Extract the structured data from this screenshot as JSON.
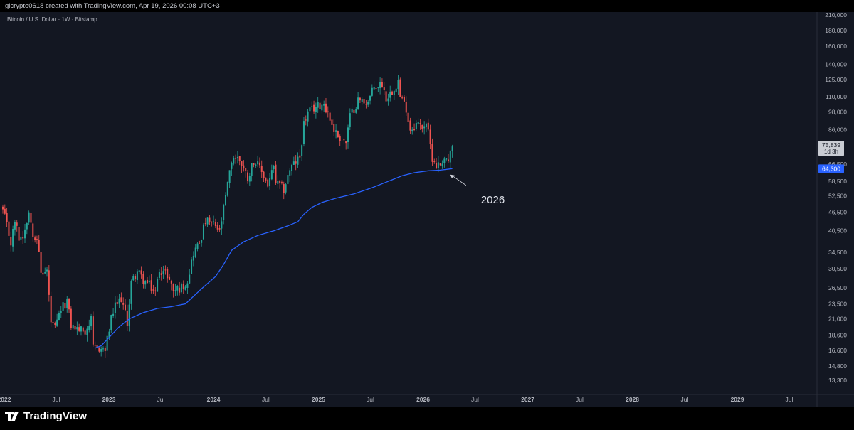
{
  "header": {
    "attribution": "glcrypto0618 created with TradingView.com, Apr 19, 2026 00:08 UTC+3"
  },
  "footer": {
    "logo_text": "TradingView"
  },
  "colors": {
    "up": "#26a69a",
    "down": "#ef5350",
    "ma": "#2962ff",
    "background": "#131722",
    "text": "#b2b5be"
  },
  "chart_data": {
    "type": "candlestick",
    "title": "Bitcoin / U.S. Dollar · 1W · Bitstamp",
    "scale": "log",
    "ylim": [
      12800,
      215000
    ],
    "x_range": [
      "2021-12-27",
      "2029-10-01"
    ],
    "y_ticks": [
      "210,000",
      "180,000",
      "160,000",
      "140,000",
      "125,000",
      "110,000",
      "98,000",
      "86,000",
      "66,500",
      "58,500",
      "52,500",
      "46,500",
      "40,500",
      "34,500",
      "30,500",
      "26,500",
      "23,500",
      "21,000",
      "18,600",
      "16,600",
      "14,800",
      "13,300"
    ],
    "x_ticks": [
      {
        "label": "2022",
        "date": "2022-01-01",
        "bold": true
      },
      {
        "label": "Jul",
        "date": "2022-07-01",
        "bold": false
      },
      {
        "label": "2023",
        "date": "2023-01-01",
        "bold": true
      },
      {
        "label": "Jul",
        "date": "2023-07-01",
        "bold": false
      },
      {
        "label": "2024",
        "date": "2024-01-01",
        "bold": true
      },
      {
        "label": "Jul",
        "date": "2024-07-01",
        "bold": false
      },
      {
        "label": "2025",
        "date": "2025-01-01",
        "bold": true
      },
      {
        "label": "Jul",
        "date": "2025-07-01",
        "bold": false
      },
      {
        "label": "2026",
        "date": "2026-01-01",
        "bold": true
      },
      {
        "label": "Jul",
        "date": "2026-07-01",
        "bold": false
      },
      {
        "label": "2027",
        "date": "2027-01-01",
        "bold": true
      },
      {
        "label": "Jul",
        "date": "2027-07-01",
        "bold": false
      },
      {
        "label": "2028",
        "date": "2028-01-01",
        "bold": true
      },
      {
        "label": "Jul",
        "date": "2028-07-01",
        "bold": false
      },
      {
        "label": "2029",
        "date": "2029-01-01",
        "bold": true
      },
      {
        "label": "Jul",
        "date": "2029-07-01",
        "bold": false
      }
    ],
    "price_label": {
      "value": 75839,
      "text": "75,839",
      "countdown": "1d 3h"
    },
    "ma_label": {
      "value": 64300,
      "text": "64,300"
    },
    "annotation": {
      "text": "2026",
      "date": "2026-04-06",
      "price": 61500
    },
    "close_path": [
      [
        "2021-12-27",
        47000
      ],
      [
        "2022-01-10",
        42000
      ],
      [
        "2022-01-24",
        37000
      ],
      [
        "2022-02-07",
        43500
      ],
      [
        "2022-02-21",
        38500
      ],
      [
        "2022-03-07",
        39000
      ],
      [
        "2022-03-28",
        46800
      ],
      [
        "2022-04-11",
        40000
      ],
      [
        "2022-04-25",
        38500
      ],
      [
        "2022-05-09",
        29500
      ],
      [
        "2022-05-30",
        30000
      ],
      [
        "2022-06-13",
        20500
      ],
      [
        "2022-06-27",
        19500
      ],
      [
        "2022-07-18",
        22500
      ],
      [
        "2022-08-08",
        24000
      ],
      [
        "2022-08-22",
        20000
      ],
      [
        "2022-09-12",
        19500
      ],
      [
        "2022-10-10",
        19200
      ],
      [
        "2022-10-31",
        20800
      ],
      [
        "2022-11-07",
        16800
      ],
      [
        "2022-11-28",
        16900
      ],
      [
        "2022-12-19",
        16600
      ],
      [
        "2023-01-09",
        21000
      ],
      [
        "2023-01-23",
        23000
      ],
      [
        "2023-02-13",
        24500
      ],
      [
        "2023-03-06",
        20500
      ],
      [
        "2023-03-20",
        27500
      ],
      [
        "2023-04-10",
        30000
      ],
      [
        "2023-05-01",
        28000
      ],
      [
        "2023-05-22",
        27000
      ],
      [
        "2023-06-12",
        25500
      ],
      [
        "2023-06-26",
        30500
      ],
      [
        "2023-07-24",
        29200
      ],
      [
        "2023-08-14",
        26000
      ],
      [
        "2023-09-11",
        26500
      ],
      [
        "2023-10-02",
        28000
      ],
      [
        "2023-10-23",
        34500
      ],
      [
        "2023-11-13",
        37000
      ],
      [
        "2023-12-04",
        43500
      ],
      [
        "2024-01-08",
        42000
      ],
      [
        "2024-01-22",
        40000
      ],
      [
        "2024-02-12",
        52000
      ],
      [
        "2024-03-04",
        68000
      ],
      [
        "2024-03-11",
        70000
      ],
      [
        "2024-04-01",
        69000
      ],
      [
        "2024-04-29",
        60000
      ],
      [
        "2024-05-20",
        68500
      ],
      [
        "2024-06-17",
        63000
      ],
      [
        "2024-07-08",
        57000
      ],
      [
        "2024-07-29",
        65000
      ],
      [
        "2024-08-05",
        58000
      ],
      [
        "2024-09-02",
        55000
      ],
      [
        "2024-09-23",
        64000
      ],
      [
        "2024-10-28",
        70000
      ],
      [
        "2024-11-11",
        90000
      ],
      [
        "2024-11-25",
        97000
      ],
      [
        "2024-12-16",
        101000
      ],
      [
        "2025-01-13",
        104000
      ],
      [
        "2025-01-20",
        105000
      ],
      [
        "2025-02-24",
        86000
      ],
      [
        "2025-03-10",
        82000
      ],
      [
        "2025-04-07",
        78000
      ],
      [
        "2025-04-21",
        95000
      ],
      [
        "2025-05-19",
        107000
      ],
      [
        "2025-06-23",
        106000
      ],
      [
        "2025-07-14",
        118000
      ],
      [
        "2025-08-11",
        121000
      ],
      [
        "2025-08-25",
        109000
      ],
      [
        "2025-09-15",
        115000
      ],
      [
        "2025-10-06",
        124000
      ],
      [
        "2025-10-13",
        110000
      ],
      [
        "2025-11-03",
        101000
      ],
      [
        "2025-11-17",
        86000
      ],
      [
        "2025-12-08",
        90000
      ],
      [
        "2025-12-29",
        88000
      ],
      [
        "2026-01-12",
        91000
      ],
      [
        "2026-02-02",
        70000
      ],
      [
        "2026-02-16",
        66000
      ],
      [
        "2026-03-02",
        66500
      ],
      [
        "2026-03-16",
        70000
      ],
      [
        "2026-03-30",
        68000
      ],
      [
        "2026-04-13",
        75839
      ]
    ],
    "ma_series": [
      [
        "2022-11-14",
        16900
      ],
      [
        "2022-12-05",
        17200
      ],
      [
        "2023-01-02",
        18300
      ],
      [
        "2023-02-06",
        19800
      ],
      [
        "2023-03-13",
        21000
      ],
      [
        "2023-05-01",
        22000
      ],
      [
        "2023-06-19",
        22700
      ],
      [
        "2023-08-07",
        23000
      ],
      [
        "2023-09-25",
        23500
      ],
      [
        "2023-11-20",
        26300
      ],
      [
        "2024-01-08",
        28800
      ],
      [
        "2024-02-05",
        31500
      ],
      [
        "2024-03-04",
        35000
      ],
      [
        "2024-04-15",
        37300
      ],
      [
        "2024-06-03",
        39100
      ],
      [
        "2024-07-29",
        40500
      ],
      [
        "2024-09-16",
        42000
      ],
      [
        "2024-10-21",
        43300
      ],
      [
        "2024-11-11",
        45800
      ],
      [
        "2024-12-09",
        48200
      ],
      [
        "2025-01-13",
        50000
      ],
      [
        "2025-03-03",
        51600
      ],
      [
        "2025-05-05",
        53300
      ],
      [
        "2025-07-07",
        55800
      ],
      [
        "2025-09-01",
        58500
      ],
      [
        "2025-10-20",
        61000
      ],
      [
        "2025-12-01",
        62400
      ],
      [
        "2026-01-19",
        63300
      ],
      [
        "2026-03-02",
        63600
      ],
      [
        "2026-04-13",
        64300
      ]
    ]
  }
}
